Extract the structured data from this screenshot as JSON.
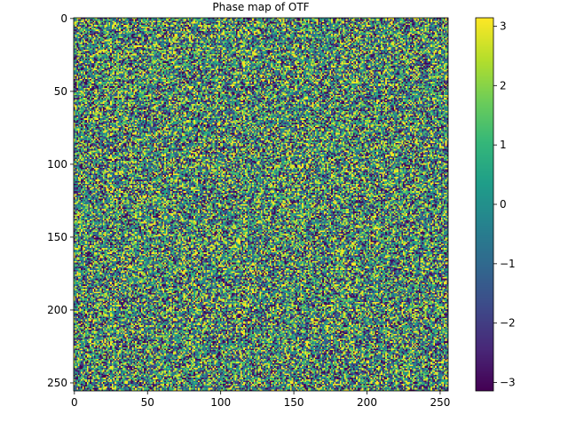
{
  "chart_data": {
    "type": "heatmap",
    "title": "Phase map of OTF",
    "xlabel": "",
    "ylabel": "",
    "rows": 256,
    "cols": 256,
    "value_range": [
      -3.14159,
      3.14159
    ],
    "origin": "upper",
    "x_ticks": [
      {
        "value": 0,
        "label": "0"
      },
      {
        "value": 50,
        "label": "50"
      },
      {
        "value": 100,
        "label": "100"
      },
      {
        "value": 150,
        "label": "150"
      },
      {
        "value": 200,
        "label": "200"
      },
      {
        "value": 250,
        "label": "250"
      }
    ],
    "y_ticks": [
      {
        "value": 0,
        "label": "0"
      },
      {
        "value": 50,
        "label": "50"
      },
      {
        "value": 100,
        "label": "100"
      },
      {
        "value": 150,
        "label": "150"
      },
      {
        "value": 200,
        "label": "200"
      },
      {
        "value": 250,
        "label": "250"
      }
    ],
    "colorbar": {
      "colormap": "viridis",
      "ticks": [
        {
          "value": 3,
          "label": "3"
        },
        {
          "value": 2,
          "label": "2"
        },
        {
          "value": 1,
          "label": "1"
        },
        {
          "value": 0,
          "label": "0"
        },
        {
          "value": -1,
          "label": "−1"
        },
        {
          "value": -2,
          "label": "−2"
        },
        {
          "value": -3,
          "label": "−3"
        }
      ]
    },
    "grid": false,
    "description": "Random-looking phase values uniformly spread across [-π, π]"
  }
}
